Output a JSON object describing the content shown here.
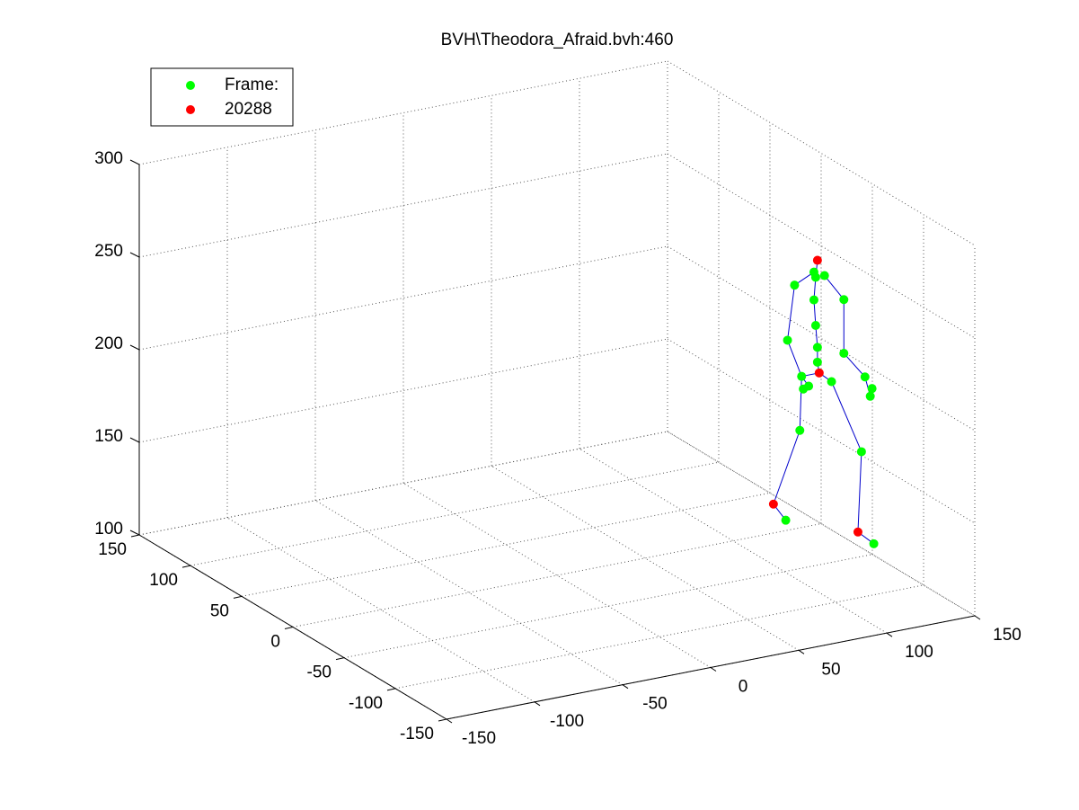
{
  "chart_data": {
    "type": "scatter3d",
    "title": "BVH\\Theodora_Afraid.bvh:460",
    "xlim": [
      -150,
      150
    ],
    "xticks": [
      -150,
      -100,
      -50,
      0,
      50,
      100,
      150
    ],
    "ylim": [
      -150,
      150
    ],
    "yticks": [
      -150,
      -100,
      -50,
      0,
      50,
      100,
      150
    ],
    "zlim": [
      100,
      300
    ],
    "zticks": [
      100,
      150,
      200,
      250,
      300
    ],
    "grid": true,
    "legend": "northwest",
    "series": [
      {
        "type": "line",
        "color": "#0000cc",
        "x": [
          114,
          113,
          113,
          112,
          111,
          112,
          113
        ],
        "y": [
          -60,
          -60,
          -60,
          -60,
          -60,
          -60,
          -60
        ],
        "z": [
          208,
          214,
          222,
          234,
          248,
          260,
          269
        ]
      },
      {
        "type": "line",
        "color": "#0000cc",
        "x": [
          111,
          100,
          96,
          104,
          108
        ],
        "y": [
          -60,
          -60,
          -60,
          -60,
          -60
        ],
        "z": [
          263,
          258,
          229,
          208,
          202
        ]
      },
      {
        "type": "line",
        "color": "#0000cc",
        "x": [
          117,
          128,
          128,
          140,
          143
        ],
        "y": [
          -60,
          -60,
          -60,
          -60,
          -60
        ],
        "z": [
          260,
          245,
          216,
          201,
          190
        ]
      },
      {
        "type": "line",
        "color": "#0000cc",
        "x": [
          114,
          104,
          103,
          88,
          95
        ],
        "y": [
          -60,
          -60,
          -60,
          -60,
          -60
        ],
        "z": [
          208,
          208,
          179,
          142,
          132
        ]
      },
      {
        "type": "line",
        "color": "#0000cc",
        "x": [
          114,
          121,
          138,
          136,
          145
        ],
        "y": [
          -60,
          -60,
          -60,
          -60,
          -60
        ],
        "z": [
          208,
          202,
          161,
          118,
          110
        ]
      },
      {
        "type": "scatter",
        "name": "Frame:",
        "color": "#00ff00",
        "x": [
          111,
          112,
          117,
          100,
          128,
          111,
          112,
          96,
          113,
          128,
          113,
          104,
          121,
          140,
          143,
          108,
          103,
          138,
          95,
          145,
          105,
          144
        ],
        "y": [
          -60,
          -60,
          -60,
          -60,
          -60,
          -60,
          -60,
          -60,
          -60,
          -60,
          -60,
          -60,
          -60,
          -60,
          -60,
          -60,
          -60,
          -60,
          -60,
          -60,
          -60,
          -60
        ],
        "z": [
          263,
          260,
          260,
          258,
          245,
          248,
          234,
          229,
          222,
          216,
          214,
          208,
          202,
          201,
          190,
          202,
          179,
          161,
          132,
          110,
          201,
          194
        ]
      },
      {
        "type": "scatter",
        "name": "20288",
        "color": "#ff0000",
        "x": [
          113,
          114,
          88,
          136
        ],
        "y": [
          -60,
          -60,
          -60,
          -60
        ],
        "z": [
          269,
          208,
          142,
          118
        ]
      }
    ]
  }
}
